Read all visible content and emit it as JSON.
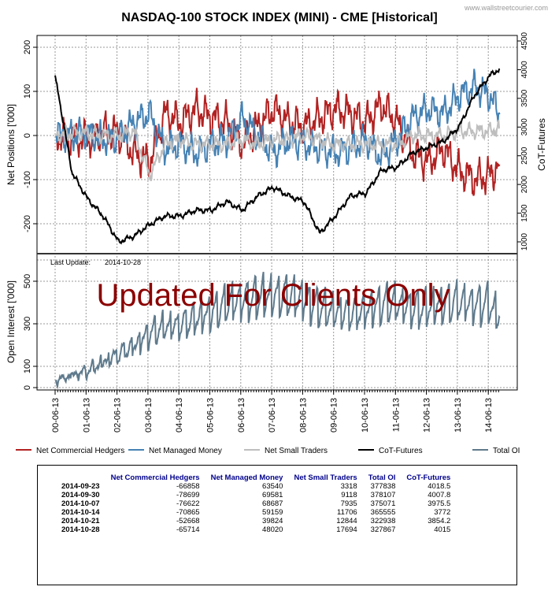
{
  "header": {
    "title": "NASDAQ-100 STOCK INDEX (MINI) - CME [Historical]",
    "site": "www.wallstreetcourier.com"
  },
  "watermark": "Updated For Clients Only",
  "last_update_label": "Last Update:",
  "last_update_value": "2014-10-28",
  "chart_data": [
    {
      "type": "line",
      "title": "NASDAQ-100 STOCK INDEX (MINI) - CME [Historical]",
      "ylabel": "Net Positions ['000]",
      "y2label": "CoT-Futures",
      "ylim": [
        -260,
        210
      ],
      "yticks": [
        -200,
        -100,
        0,
        100,
        200
      ],
      "y2lim": [
        820,
        4600
      ],
      "y2ticks": [
        1000,
        1500,
        2000,
        2500,
        3000,
        3500,
        4000,
        4500
      ],
      "x": [
        2000.45,
        2001,
        2001.5,
        2002,
        2002.5,
        2003,
        2003.5,
        2004,
        2004.5,
        2005,
        2005.5,
        2006,
        2006.5,
        2007,
        2007.5,
        2008,
        2008.5,
        2009,
        2009.5,
        2010,
        2010.5,
        2011,
        2011.5,
        2012,
        2012.5,
        2013,
        2013.5,
        2014,
        2014.5,
        2014.82
      ],
      "series": [
        {
          "name": "Net Commercial Hedgers",
          "color": "#b22222",
          "axis": "left",
          "values": [
            0,
            -5,
            -10,
            10,
            5,
            -40,
            -60,
            50,
            30,
            60,
            40,
            30,
            -20,
            20,
            60,
            30,
            20,
            40,
            60,
            50,
            30,
            70,
            30,
            -40,
            -60,
            -30,
            -80,
            -100,
            -90,
            -66
          ]
        },
        {
          "name": "Net Managed Money",
          "color": "#4682b4",
          "axis": "left",
          "values": [
            0,
            0,
            5,
            -10,
            -5,
            30,
            50,
            -30,
            -20,
            -40,
            -20,
            -10,
            40,
            0,
            -40,
            -10,
            -20,
            -30,
            -40,
            -30,
            -10,
            -50,
            -10,
            40,
            60,
            50,
            90,
            110,
            90,
            48
          ]
        },
        {
          "name": "Net Small Traders",
          "color": "#bebebe",
          "axis": "left",
          "values": [
            0,
            5,
            5,
            0,
            0,
            10,
            -90,
            -20,
            -10,
            -20,
            -20,
            -20,
            -10,
            -20,
            -10,
            -10,
            0,
            -10,
            -20,
            -20,
            -20,
            -20,
            -20,
            0,
            0,
            0,
            10,
            10,
            10,
            18
          ]
        },
        {
          "name": "CoT-Futures",
          "color": "#000000",
          "axis": "right",
          "values": [
            3900,
            2200,
            1750,
            1450,
            1000,
            1100,
            1300,
            1450,
            1450,
            1550,
            1550,
            1700,
            1550,
            1800,
            1950,
            1800,
            1700,
            1150,
            1450,
            1800,
            1850,
            2250,
            2300,
            2550,
            2650,
            2750,
            3000,
            3550,
            3900,
            4015
          ]
        }
      ]
    },
    {
      "type": "line",
      "ylabel": "Open Interest ['000]",
      "ylim": [
        -10,
        640
      ],
      "yticks": [
        0,
        100,
        300,
        500
      ],
      "xtick_labels": [
        "00-06-13",
        "01-06-13",
        "02-06-13",
        "03-06-13",
        "04-06-13",
        "05-06-13",
        "06-06-13",
        "07-06-13",
        "08-06-13",
        "09-06-13",
        "10-06-13",
        "11-06-13",
        "12-06-13",
        "13-06-13",
        "14-06-13"
      ],
      "x": [
        2000.45,
        2001,
        2001.5,
        2002,
        2002.5,
        2003,
        2003.5,
        2004,
        2004.5,
        2005,
        2005.5,
        2006,
        2006.5,
        2007,
        2007.5,
        2008,
        2008.5,
        2009,
        2009.5,
        2010,
        2010.5,
        2011,
        2011.5,
        2012,
        2012.5,
        2013,
        2013.5,
        2014,
        2014.5,
        2014.82
      ],
      "series": [
        {
          "name": "Total OI",
          "color": "#5f7a8c",
          "values": [
            30,
            60,
            80,
            120,
            160,
            200,
            260,
            290,
            300,
            330,
            360,
            400,
            420,
            430,
            440,
            440,
            420,
            380,
            360,
            360,
            370,
            400,
            400,
            380,
            380,
            400,
            410,
            400,
            400,
            328
          ]
        }
      ]
    }
  ],
  "legend": [
    "Net Commercial Hedgers",
    "Net Managed Money",
    "Net Small Traders",
    "CoT-Futures",
    "Total OI"
  ],
  "table": {
    "headers": [
      "",
      "Net Commercial Hedgers",
      "Net Managed Money",
      "Net Small Traders",
      "Total OI",
      "CoT-Futures"
    ],
    "rows": [
      [
        "2014-09-23",
        "-66858",
        "63540",
        "3318",
        "377838",
        "4018.5"
      ],
      [
        "2014-09-30",
        "-78699",
        "69581",
        "9118",
        "378107",
        "4007.8"
      ],
      [
        "2014-10-07",
        "-76622",
        "68687",
        "7935",
        "375071",
        "3975.5"
      ],
      [
        "2014-10-14",
        "-70865",
        "59159",
        "11706",
        "365555",
        "3772"
      ],
      [
        "2014-10-21",
        "-52668",
        "39824",
        "12844",
        "322938",
        "3854.2"
      ],
      [
        "2014-10-28",
        "-65714",
        "48020",
        "17694",
        "327867",
        "4015"
      ]
    ]
  }
}
